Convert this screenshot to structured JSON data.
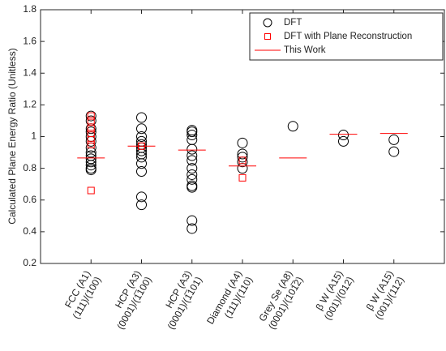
{
  "chart_data": {
    "type": "scatter",
    "y_label": "Calculated Plane Energy Ratio (Unitless)",
    "categories": [
      "FCC (A1)",
      "HCP (A3)",
      "HCP (A3)",
      "Diamond (A4)",
      "Grey Se (A8)",
      "β W (A15)",
      "β W (A15)"
    ],
    "category_sublabels": [
      "(111)/(100)",
      "(0001)/(1̅100)",
      "(0001)/(1̅101)",
      "(111)/(110)",
      "(0001)/(101̅2)",
      "(001)/(012)",
      "(001)/(112)"
    ],
    "ylim": [
      0.2,
      1.8
    ],
    "yticks": [
      0.2,
      0.4,
      0.6,
      0.8,
      1,
      1.2,
      1.4,
      1.6,
      1.8
    ],
    "legend": "upper right",
    "series": [
      {
        "name": "DFT",
        "color": "#000000",
        "marker": "circle",
        "values": [
          [
            1.13,
            1.1,
            1.05,
            1.03,
            1.0,
            0.97,
            0.93,
            0.9,
            0.88,
            0.86,
            0.84,
            0.82,
            0.8,
            0.79
          ],
          [
            1.12,
            1.05,
            1.0,
            0.97,
            0.95,
            0.93,
            0.91,
            0.89,
            0.87,
            0.83,
            0.78,
            0.62,
            0.57
          ],
          [
            1.04,
            1.03,
            1.01,
            0.98,
            0.92,
            0.88,
            0.85,
            0.8,
            0.76,
            0.73,
            0.69,
            0.68,
            0.47,
            0.42
          ],
          [
            0.96,
            0.89,
            0.87,
            0.84,
            0.8
          ],
          [
            1.065
          ],
          [
            1.01,
            0.97
          ],
          [
            0.98,
            0.905
          ]
        ]
      },
      {
        "name": "DFT with Plane Reconstruction",
        "color": "#ff0000",
        "marker": "square",
        "values": [
          [
            1.13,
            1.1,
            1.05,
            1.02,
            0.98,
            0.95,
            0.66
          ],
          [
            0.94
          ],
          [],
          [
            0.85,
            0.74
          ],
          [],
          [],
          []
        ]
      },
      {
        "name": "This Work",
        "color": "#ff0000",
        "marker": "hline",
        "values": [
          0.865,
          0.94,
          0.915,
          0.815,
          0.865,
          1.015,
          1.02
        ]
      }
    ]
  }
}
